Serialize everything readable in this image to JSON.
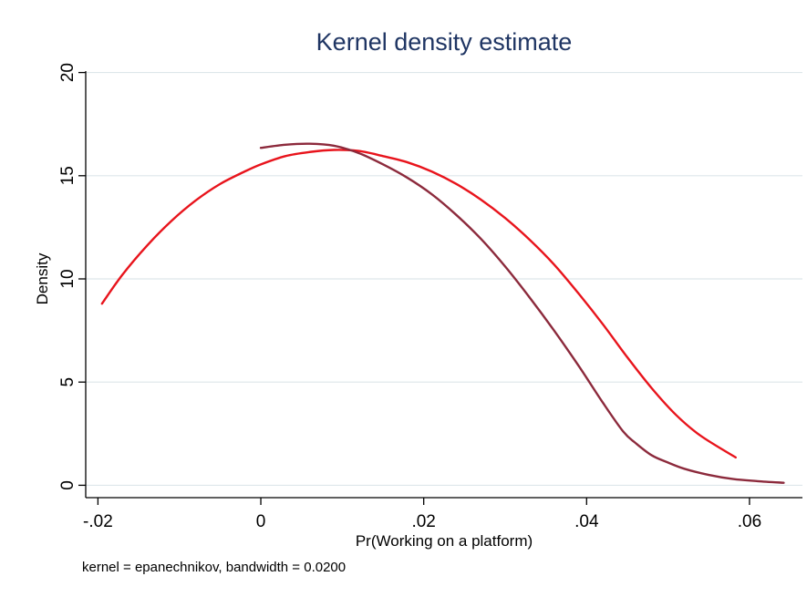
{
  "chart_data": {
    "type": "line",
    "title": "Kernel density estimate",
    "xlabel": "Pr(Working on a platform)",
    "ylabel": "Density",
    "note": "kernel = epanechnikov, bandwidth = 0.0200",
    "xlim": [
      -0.0215,
      0.0665
    ],
    "ylim": [
      -0.6,
      20.6
    ],
    "x_ticks": [
      -0.02,
      0,
      0.02,
      0.04,
      0.06
    ],
    "x_tick_labels": [
      "-.02",
      "0",
      ".02",
      ".04",
      ".06"
    ],
    "y_ticks": [
      0,
      5,
      10,
      15,
      20
    ],
    "y_tick_labels": [
      "0",
      "5",
      "10",
      "15",
      "20"
    ],
    "grid": "horizontal",
    "legend": "none",
    "series": [
      {
        "color": "#e8141c",
        "x": [
          -0.0195,
          -0.017,
          -0.014,
          -0.011,
          -0.008,
          -0.005,
          -0.002,
          0.0,
          0.003,
          0.006,
          0.009,
          0.012,
          0.015,
          0.018,
          0.021,
          0.024,
          0.027,
          0.03,
          0.033,
          0.036,
          0.039,
          0.042,
          0.045,
          0.048,
          0.051,
          0.054,
          0.0583
        ],
        "y": [
          8.8,
          10.2,
          11.6,
          12.8,
          13.8,
          14.6,
          15.2,
          15.55,
          15.95,
          16.15,
          16.25,
          16.2,
          15.95,
          15.65,
          15.2,
          14.6,
          13.85,
          12.95,
          11.9,
          10.7,
          9.3,
          7.8,
          6.2,
          4.7,
          3.4,
          2.4,
          1.35
        ]
      },
      {
        "color": "#8c2a3c",
        "x": [
          0.0,
          0.003,
          0.006,
          0.009,
          0.012,
          0.015,
          0.018,
          0.021,
          0.024,
          0.027,
          0.03,
          0.033,
          0.036,
          0.039,
          0.042,
          0.0445,
          0.046,
          0.048,
          0.05,
          0.052,
          0.055,
          0.058,
          0.061,
          0.0642
        ],
        "y": [
          16.35,
          16.5,
          16.55,
          16.45,
          16.1,
          15.55,
          14.9,
          14.1,
          13.1,
          11.95,
          10.6,
          9.1,
          7.5,
          5.8,
          4.0,
          2.6,
          2.05,
          1.45,
          1.1,
          0.8,
          0.5,
          0.3,
          0.2,
          0.12
        ]
      }
    ]
  }
}
